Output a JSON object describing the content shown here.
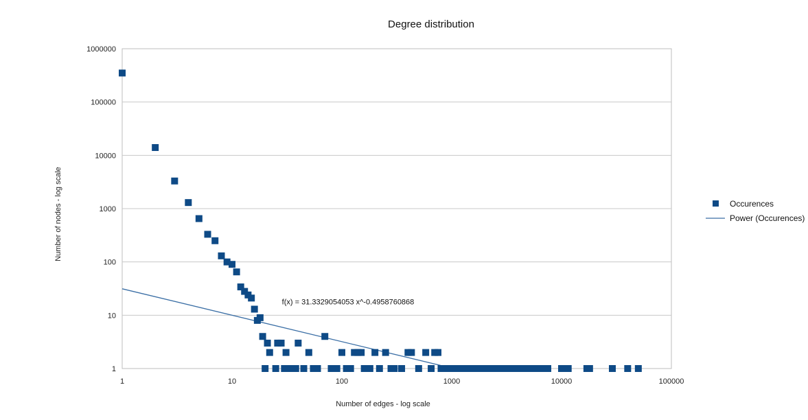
{
  "chart_data": {
    "type": "scatter",
    "title": "Degree distribution",
    "xlabel": "Number of edges - log scale",
    "ylabel": "Number of nodes - log scale",
    "x_scale": "log",
    "y_scale": "log",
    "xlim": [
      1,
      100000
    ],
    "ylim": [
      1,
      1000000
    ],
    "x_ticks": [
      "1",
      "10",
      "100",
      "1000",
      "10000",
      "100000"
    ],
    "y_ticks": [
      "1",
      "10",
      "100",
      "1000",
      "10000",
      "100000",
      "1000000"
    ],
    "grid": "horizontal",
    "legend_position": "right",
    "colors": {
      "points": "#0e4a86",
      "trend": "#3a6ea5",
      "grid": "#c8c8c8",
      "frame": "#bdbdbd"
    },
    "series": [
      {
        "name": "Occurences",
        "marker": "square",
        "points": [
          [
            1,
            350000
          ],
          [
            2,
            14000
          ],
          [
            3,
            3300
          ],
          [
            4,
            1300
          ],
          [
            5,
            650
          ],
          [
            6,
            330
          ],
          [
            7,
            250
          ],
          [
            8,
            130
          ],
          [
            9,
            100
          ],
          [
            10,
            90
          ],
          [
            11,
            65
          ],
          [
            12,
            34
          ],
          [
            13,
            28
          ],
          [
            14,
            24
          ],
          [
            15,
            21
          ],
          [
            16,
            13
          ],
          [
            17,
            8
          ],
          [
            18,
            9
          ],
          [
            19,
            4
          ],
          [
            20,
            1
          ],
          [
            21,
            3
          ],
          [
            22,
            2
          ],
          [
            25,
            1
          ],
          [
            26,
            3
          ],
          [
            28,
            3
          ],
          [
            30,
            1
          ],
          [
            31,
            2
          ],
          [
            34,
            1
          ],
          [
            38,
            1
          ],
          [
            40,
            3
          ],
          [
            45,
            1
          ],
          [
            50,
            2
          ],
          [
            55,
            1
          ],
          [
            60,
            1
          ],
          [
            70,
            4
          ],
          [
            80,
            1
          ],
          [
            90,
            1
          ],
          [
            100,
            2
          ],
          [
            110,
            1
          ],
          [
            120,
            1
          ],
          [
            130,
            2
          ],
          [
            140,
            2
          ],
          [
            150,
            2
          ],
          [
            160,
            1
          ],
          [
            180,
            1
          ],
          [
            200,
            2
          ],
          [
            220,
            1
          ],
          [
            250,
            2
          ],
          [
            280,
            1
          ],
          [
            300,
            1
          ],
          [
            350,
            1
          ],
          [
            400,
            2
          ],
          [
            430,
            2
          ],
          [
            500,
            1
          ],
          [
            580,
            2
          ],
          [
            650,
            1
          ],
          [
            700,
            2
          ],
          [
            750,
            2
          ],
          [
            800,
            1
          ],
          [
            850,
            1
          ],
          [
            900,
            1
          ],
          [
            1000,
            1
          ],
          [
            1100,
            1
          ],
          [
            1200,
            1
          ],
          [
            1300,
            1
          ],
          [
            1400,
            1
          ],
          [
            1500,
            1
          ],
          [
            1700,
            1
          ],
          [
            1900,
            1
          ],
          [
            2100,
            1
          ],
          [
            2300,
            1
          ],
          [
            2500,
            1
          ],
          [
            2800,
            1
          ],
          [
            3000,
            1
          ],
          [
            3300,
            1
          ],
          [
            3600,
            1
          ],
          [
            4000,
            1
          ],
          [
            4400,
            1
          ],
          [
            4800,
            1
          ],
          [
            5200,
            1
          ],
          [
            5700,
            1
          ],
          [
            6200,
            1
          ],
          [
            6800,
            1
          ],
          [
            7500,
            1
          ],
          [
            10000,
            1
          ],
          [
            10600,
            1
          ],
          [
            11500,
            1
          ],
          [
            17000,
            1
          ],
          [
            18000,
            1
          ],
          [
            29000,
            1
          ],
          [
            40000,
            1
          ],
          [
            50000,
            1
          ]
        ]
      },
      {
        "name": "Power (Occurences)",
        "type": "line",
        "fit": {
          "a": 31.3329054053,
          "b": -0.4958760868,
          "x_range": [
            1,
            800
          ]
        }
      }
    ],
    "annotations": [
      {
        "text": "f(x) = 31.3329054053 x^-0.4958760868",
        "x": 90,
        "y": 18
      }
    ]
  }
}
